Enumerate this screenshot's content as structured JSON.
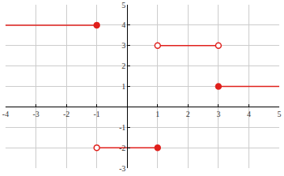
{
  "chart_data": {
    "type": "line",
    "color": "#e0201c",
    "grid": true,
    "xlim": [
      -4,
      5
    ],
    "xticks": [
      -4,
      -3,
      -2,
      -1,
      1,
      2,
      3,
      4,
      5
    ],
    "ylim": [
      -3,
      5
    ],
    "yticks": [
      -3,
      -2,
      -1,
      1,
      2,
      3,
      4,
      5
    ],
    "series": [
      {
        "type": "line",
        "x": [
          -4,
          -1
        ],
        "values": [
          4,
          4
        ]
      },
      {
        "type": "line",
        "x": [
          -1,
          1
        ],
        "values": [
          -2,
          -2
        ]
      },
      {
        "type": "line",
        "x": [
          1,
          3
        ],
        "values": [
          3,
          3
        ]
      },
      {
        "type": "line",
        "x": [
          3,
          5
        ],
        "values": [
          1,
          1
        ]
      },
      {
        "type": "scatter",
        "marker": "filled",
        "x": [
          -1,
          1,
          3
        ],
        "values": [
          4,
          -2,
          1
        ]
      },
      {
        "type": "scatter",
        "marker": "open",
        "x": [
          -1,
          1,
          3
        ],
        "values": [
          -2,
          3,
          3
        ]
      }
    ]
  }
}
